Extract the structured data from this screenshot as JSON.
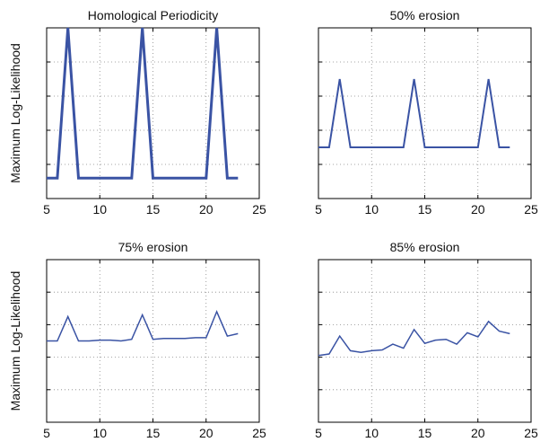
{
  "figure": {
    "ylabel": "Maximum Log-Likelihood",
    "line_color": "#3a53a4"
  },
  "chart_data": [
    {
      "type": "line",
      "title": "Homological Periodicity",
      "xlabel": "",
      "ylabel": "Maximum Log-Likelihood",
      "xlim": [
        5,
        25
      ],
      "xticks": [
        5,
        10,
        15,
        20,
        25
      ],
      "ylim": [
        0,
        1
      ],
      "grid": true,
      "stroke_width": 3,
      "series": [
        {
          "x": [
            5,
            6,
            7,
            8,
            9,
            10,
            11,
            12,
            13,
            14,
            15,
            16,
            17,
            18,
            19,
            20,
            21,
            22,
            23
          ],
          "values": [
            0.12,
            0.12,
            1.0,
            0.12,
            0.12,
            0.12,
            0.12,
            0.12,
            0.12,
            1.0,
            0.12,
            0.12,
            0.12,
            0.12,
            0.12,
            0.12,
            1.0,
            0.12,
            0.12
          ]
        }
      ]
    },
    {
      "type": "line",
      "title": "50% erosion",
      "xlabel": "",
      "ylabel": "",
      "xlim": [
        5,
        25
      ],
      "xticks": [
        5,
        10,
        15,
        20,
        25
      ],
      "ylim": [
        0,
        1
      ],
      "grid": true,
      "stroke_width": 2,
      "series": [
        {
          "x": [
            5,
            6,
            7,
            8,
            9,
            10,
            11,
            12,
            13,
            14,
            15,
            16,
            17,
            18,
            19,
            20,
            21,
            22,
            23
          ],
          "values": [
            0.3,
            0.3,
            0.7,
            0.3,
            0.3,
            0.3,
            0.3,
            0.3,
            0.3,
            0.7,
            0.3,
            0.3,
            0.3,
            0.3,
            0.3,
            0.3,
            0.7,
            0.3,
            0.3
          ]
        }
      ]
    },
    {
      "type": "line",
      "title": "75% erosion",
      "xlabel": "",
      "ylabel": "Maximum Log-Likelihood",
      "xlim": [
        5,
        25
      ],
      "xticks": [
        5,
        10,
        15,
        20,
        25
      ],
      "ylim": [
        0,
        1
      ],
      "grid": true,
      "stroke_width": 1.5,
      "series": [
        {
          "x": [
            5,
            6,
            7,
            8,
            9,
            10,
            11,
            12,
            13,
            14,
            15,
            16,
            17,
            18,
            19,
            20,
            21,
            22,
            23
          ],
          "values": [
            0.5,
            0.5,
            0.65,
            0.5,
            0.5,
            0.505,
            0.505,
            0.5,
            0.51,
            0.66,
            0.51,
            0.515,
            0.515,
            0.515,
            0.52,
            0.52,
            0.68,
            0.53,
            0.545
          ]
        }
      ]
    },
    {
      "type": "line",
      "title": "85% erosion",
      "xlabel": "",
      "ylabel": "",
      "xlim": [
        5,
        25
      ],
      "xticks": [
        5,
        10,
        15,
        20,
        25
      ],
      "ylim": [
        0,
        1
      ],
      "grid": true,
      "stroke_width": 1.5,
      "series": [
        {
          "x": [
            5,
            6,
            7,
            8,
            9,
            10,
            11,
            12,
            13,
            14,
            15,
            16,
            17,
            18,
            19,
            20,
            21,
            22,
            23
          ],
          "values": [
            0.41,
            0.42,
            0.53,
            0.44,
            0.43,
            0.44,
            0.445,
            0.48,
            0.455,
            0.57,
            0.485,
            0.505,
            0.51,
            0.48,
            0.55,
            0.525,
            0.62,
            0.56,
            0.545
          ]
        }
      ]
    }
  ]
}
